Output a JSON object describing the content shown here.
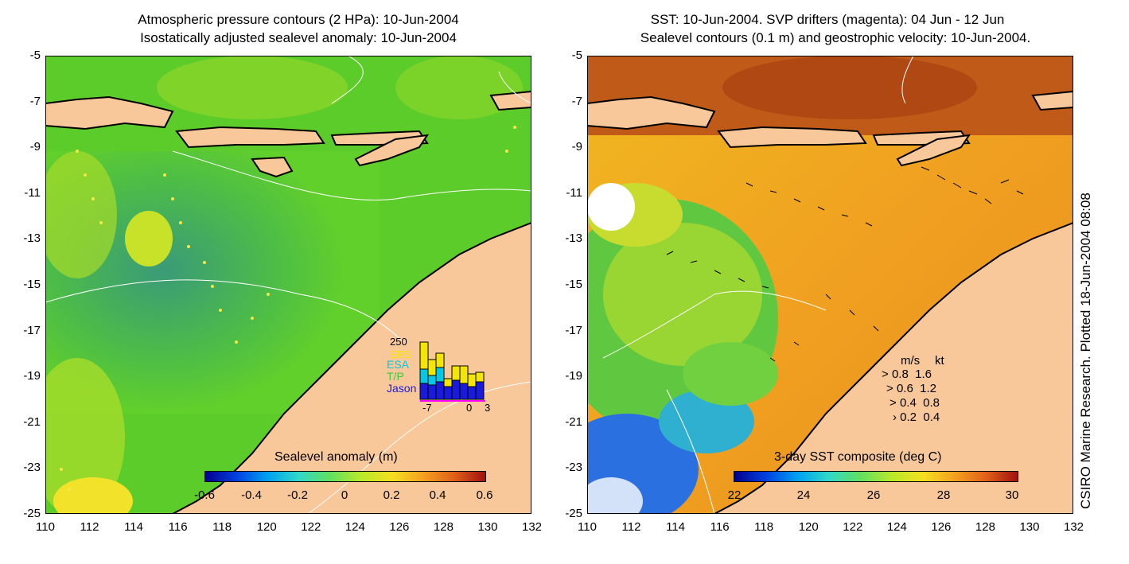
{
  "left_panel": {
    "title_line1": "Atmospheric pressure contours (2 HPa): 10-Jun-2004",
    "title_line2": "Isostatically adjusted sealevel anomaly: 10-Jun-2004",
    "colorbar_label": "Sealevel anomaly (m)",
    "colorbar_ticks": [
      "-0.6",
      "-0.4",
      "-0.2",
      "0",
      "0.2",
      "0.4",
      "0.6"
    ],
    "inset": {
      "ymax_label": "250",
      "legend": [
        "ERS",
        "ESA",
        "T/P",
        "Jason"
      ],
      "legend_colors": [
        "#f5e600",
        "#00c8e6",
        "#3cc83c",
        "#1a1adc"
      ],
      "xticks": [
        "-7",
        "0",
        "3"
      ]
    }
  },
  "right_panel": {
    "title_line1": "SST: 10-Jun-2004. SVP drifters (magenta): 04 Jun - 12 Jun",
    "title_line2": "Sealevel contours (0.1 m) and geostrophic velocity: 10-Jun-2004.",
    "colorbar_label": "3-day SST composite (deg C)",
    "colorbar_ticks": [
      "22",
      "24",
      "26",
      "28",
      "30"
    ],
    "scale_header_ms": "m/s",
    "scale_header_kt": "kt",
    "scale_rows": [
      {
        "ms": "0.8",
        "kt": "1.6"
      },
      {
        "ms": "0.6",
        "kt": "1.2"
      },
      {
        "ms": "0.4",
        "kt": "0.8"
      },
      {
        "ms": "0.2",
        "kt": "0.4"
      }
    ]
  },
  "axes": {
    "x_ticks": [
      "110",
      "112",
      "114",
      "116",
      "118",
      "120",
      "122",
      "124",
      "126",
      "128",
      "130",
      "132"
    ],
    "y_ticks": [
      "-5",
      "-7",
      "-9",
      "-11",
      "-13",
      "-15",
      "-17",
      "-19",
      "-21",
      "-23",
      "-25"
    ]
  },
  "credit": "CSIRO Marine Research. Plotted 18-Jun-2004 08:08",
  "colors": {
    "land": "#f9c89a",
    "ocean_green": "#5ccc2a",
    "ocean_light": "#b8e02a",
    "ocean_teal": "#4aa860",
    "sst_orange": "#f0a020",
    "sst_brown": "#c05a18",
    "sst_blue": "#2060e0"
  }
}
